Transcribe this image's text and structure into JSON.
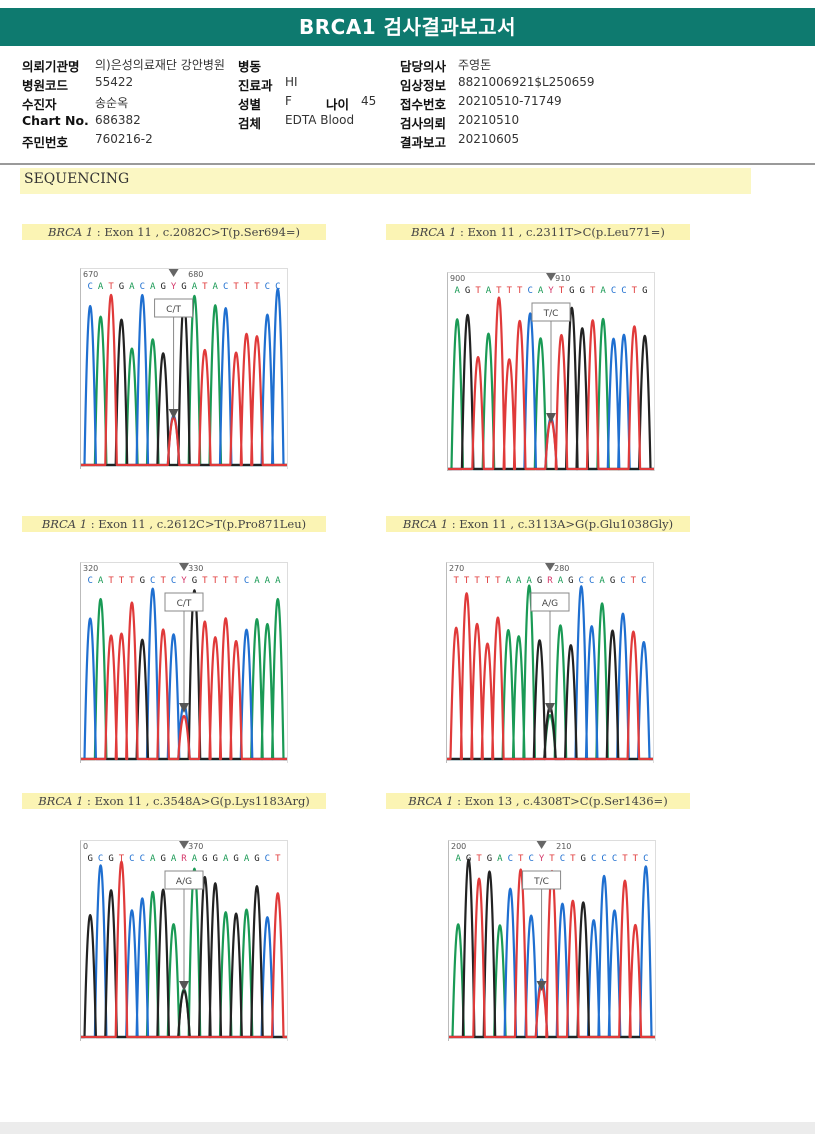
{
  "title": "BRCA1 검사결과보고서",
  "info": {
    "rows": [
      {
        "l1": "의뢰기관명",
        "v1": "의)은성의료재단 강안병원",
        "l2": "병동",
        "v2": "",
        "l4": "담당의사",
        "v4": "주영돈"
      },
      {
        "l1": "병원코드",
        "v1": "55422",
        "l2": "진료과",
        "v2": "HI",
        "l4": "임상정보",
        "v4": "8821006921$L250659"
      },
      {
        "l1": "수진자",
        "v1": "송순옥",
        "l2": "성별",
        "v2": "F",
        "l3": "나이",
        "v3": "45",
        "l4": "접수번호",
        "v4": "20210510-71749"
      },
      {
        "l1": "Chart No.",
        "v1": "686382",
        "l2": "검체",
        "v2": "EDTA Blood",
        "l4": "검사의뢰",
        "v4": "20210510"
      },
      {
        "l1": "주민번호",
        "v1": "760216-2",
        "l4": "결과보고",
        "v4": "20210605"
      }
    ]
  },
  "section": "SEQUENCING",
  "panels": [
    {
      "gene": "BRCA 1",
      "desc": " : Exon 11 , c.2082C>T(p.Ser694=)",
      "pos1": "670",
      "pos2": "680",
      "seq": "CATGACAGYGATACTTTCC",
      "call": "C/T"
    },
    {
      "gene": "BRCA 1",
      "desc": " : Exon 11 , c.2311T>C(p.Leu771=)",
      "pos1": "900",
      "pos2": "910",
      "seq": "AGTATTTCAYTGGTACCTG",
      "call": "T/C"
    },
    {
      "gene": "BRCA 1",
      "desc": " : Exon 11 , c.2612C>T(p.Pro871Leu)",
      "pos1": "320",
      "pos2": "330",
      "seq": "CATTTGCTCYGTTTTCAAA",
      "call": "C/T"
    },
    {
      "gene": "BRCA 1",
      "desc": " : Exon 11 , c.3113A>G(p.Glu1038Gly)",
      "pos1": "270",
      "pos2": "280",
      "seq": "TTTTTAAAGRAGCCAGCTC",
      "call": "A/G"
    },
    {
      "gene": "BRCA 1",
      "desc": " : Exon 11 , c.3548A>G(p.Lys1183Arg)",
      "pos1": "0",
      "pos2": "370",
      "seq": "GCGTCCAGARAGGAGAGCT",
      "call": "A/G"
    },
    {
      "gene": "BRCA 1",
      "desc": " : Exon 13 , c.4308T>C(p.Ser1436=)",
      "pos1": "200",
      "pos2": "210",
      "seq": "AGTGACTCYTCTGCCCTTC",
      "call": "T/C"
    }
  ],
  "colors": {
    "A": "#1a9a55",
    "C": "#1f6fd0",
    "G": "#222222",
    "T": "#e03a3a",
    "Y": "#d4386a",
    "R": "#d4386a",
    "header": "#0e7a6f"
  }
}
